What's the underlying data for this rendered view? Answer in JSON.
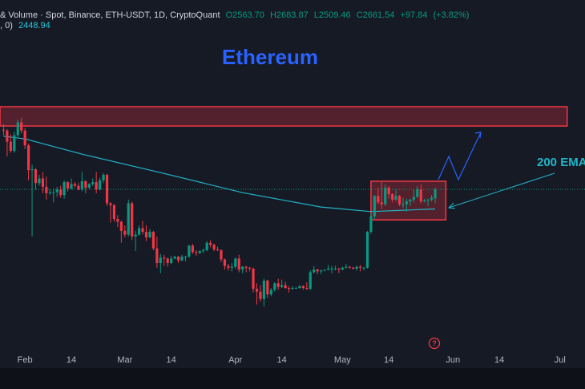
{
  "chart_data": {
    "type": "candlestick",
    "title": "Ethereum",
    "header": "& Volume · Spot, Binance, ETH-USDT, 1D, CryptoQuant",
    "legend_labels": [
      "O2563.70",
      "H2683.87",
      "L2509.46",
      "C2661.54"
    ],
    "change": {
      "value": 97.84,
      "label": "+97.84"
    },
    "change_pct": {
      "value": 3.82,
      "label": "(+3.82%)"
    },
    "ema_prefix": ", 0)",
    "annotation": "200 EMA",
    "up_color": "#089981",
    "down_color": "#f23645",
    "ema_color": "#22b5c9",
    "zone_color": "#f23645",
    "xlim": [
      "01-25",
      "07-08"
    ],
    "ylim": [
      910,
      4720
    ],
    "xticks": [
      {
        "value": "02-01",
        "label": "Feb"
      },
      {
        "value": "02-14",
        "label": "14"
      },
      {
        "value": "03-01",
        "label": "Mar"
      },
      {
        "value": "03-14",
        "label": "14"
      },
      {
        "value": "04-01",
        "label": "Apr"
      },
      {
        "value": "04-14",
        "label": "14"
      },
      {
        "value": "05-01",
        "label": "May"
      },
      {
        "value": "05-14",
        "label": "14"
      },
      {
        "value": "06-01",
        "label": "Jun"
      },
      {
        "value": "06-14",
        "label": "14"
      },
      {
        "value": "07-01",
        "label": "Jul"
      }
    ],
    "x": [
      "01-26",
      "01-27",
      "01-28",
      "01-29",
      "01-30",
      "01-31",
      "02-01",
      "02-02",
      "02-03",
      "02-04",
      "02-05",
      "02-06",
      "02-07",
      "02-08",
      "02-09",
      "02-10",
      "02-11",
      "02-12",
      "02-13",
      "02-14",
      "02-15",
      "02-16",
      "02-17",
      "02-18",
      "02-19",
      "02-20",
      "02-21",
      "02-22",
      "02-23",
      "02-24",
      "02-25",
      "02-26",
      "02-27",
      "02-28",
      "03-01",
      "03-02",
      "03-03",
      "03-04",
      "03-05",
      "03-06",
      "03-07",
      "03-08",
      "03-09",
      "03-10",
      "03-11",
      "03-12",
      "03-13",
      "03-14",
      "03-15",
      "03-16",
      "03-17",
      "03-18",
      "03-19",
      "03-20",
      "03-21",
      "03-22",
      "03-23",
      "03-24",
      "03-25",
      "03-26",
      "03-27",
      "03-28",
      "03-29",
      "03-30",
      "03-31",
      "04-01",
      "04-02",
      "04-03",
      "04-04",
      "04-05",
      "04-06",
      "04-07",
      "04-08",
      "04-09",
      "04-10",
      "04-11",
      "04-12",
      "04-13",
      "04-14",
      "04-15",
      "04-16",
      "04-17",
      "04-18",
      "04-19",
      "04-20",
      "04-21",
      "04-22",
      "04-23",
      "04-24",
      "04-25",
      "04-26",
      "04-27",
      "04-28",
      "04-29",
      "04-30",
      "05-01",
      "05-02",
      "05-03",
      "05-04",
      "05-05",
      "05-06",
      "05-07",
      "05-08",
      "05-09",
      "05-10",
      "05-11",
      "05-12",
      "05-13",
      "05-14",
      "05-15",
      "05-16",
      "05-17",
      "05-18",
      "05-19",
      "05-20",
      "05-21",
      "05-22",
      "05-23",
      "05-24",
      "05-25",
      "05-26",
      "05-27"
    ],
    "candles": [
      [
        3310,
        3370,
        3250,
        3300
      ],
      [
        3300,
        3320,
        3020,
        3180
      ],
      [
        3180,
        3260,
        3060,
        3080
      ],
      [
        3080,
        3290,
        3060,
        3250
      ],
      [
        3250,
        3420,
        3220,
        3390
      ],
      [
        3390,
        3440,
        3270,
        3300
      ],
      [
        3300,
        3330,
        3100,
        3140
      ],
      [
        3140,
        3160,
        2760,
        2870
      ],
      [
        2870,
        2930,
        2150,
        2880
      ],
      [
        2880,
        2890,
        2660,
        2730
      ],
      [
        2730,
        2820,
        2700,
        2780
      ],
      [
        2780,
        2850,
        2620,
        2690
      ],
      [
        2690,
        2800,
        2550,
        2620
      ],
      [
        2620,
        2660,
        2600,
        2630
      ],
      [
        2630,
        2670,
        2520,
        2630
      ],
      [
        2630,
        2690,
        2580,
        2660
      ],
      [
        2660,
        2700,
        2570,
        2600
      ],
      [
        2600,
        2760,
        2560,
        2740
      ],
      [
        2740,
        2750,
        2640,
        2670
      ],
      [
        2670,
        2780,
        2660,
        2720
      ],
      [
        2720,
        2740,
        2680,
        2700
      ],
      [
        2700,
        2730,
        2650,
        2660
      ],
      [
        2660,
        2850,
        2640,
        2750
      ],
      [
        2750,
        2760,
        2620,
        2680
      ],
      [
        2680,
        2730,
        2660,
        2720
      ],
      [
        2720,
        2780,
        2700,
        2740
      ],
      [
        2740,
        2850,
        2620,
        2660
      ],
      [
        2660,
        2790,
        2650,
        2760
      ],
      [
        2760,
        2840,
        2730,
        2820
      ],
      [
        2820,
        2830,
        2480,
        2510
      ],
      [
        2510,
        2520,
        2300,
        2490
      ],
      [
        2490,
        2500,
        2310,
        2340
      ],
      [
        2340,
        2380,
        2250,
        2310
      ],
      [
        2310,
        2320,
        2080,
        2210
      ],
      [
        2210,
        2270,
        2140,
        2170
      ],
      [
        2170,
        2550,
        2150,
        2510
      ],
      [
        2510,
        2530,
        2110,
        2150
      ],
      [
        2150,
        2210,
        1990,
        2170
      ],
      [
        2170,
        2270,
        2160,
        2240
      ],
      [
        2240,
        2320,
        2170,
        2200
      ],
      [
        2200,
        2270,
        2100,
        2140
      ],
      [
        2140,
        2230,
        2130,
        2200
      ],
      [
        2200,
        2210,
        2000,
        2020
      ],
      [
        2020,
        2150,
        1810,
        1860
      ],
      [
        1860,
        1960,
        1750,
        1920
      ],
      [
        1920,
        1950,
        1830,
        1910
      ],
      [
        1910,
        1920,
        1820,
        1860
      ],
      [
        1860,
        1940,
        1850,
        1910
      ],
      [
        1910,
        1940,
        1900,
        1930
      ],
      [
        1930,
        1940,
        1860,
        1890
      ],
      [
        1890,
        1950,
        1880,
        1930
      ],
      [
        1930,
        1940,
        1880,
        1930
      ],
      [
        1930,
        2060,
        1920,
        2050
      ],
      [
        2050,
        2070,
        1960,
        1980
      ],
      [
        1980,
        2000,
        1940,
        1970
      ],
      [
        1970,
        2000,
        1960,
        1990
      ],
      [
        1990,
        2020,
        1970,
        2000
      ],
      [
        2000,
        2100,
        1990,
        2080
      ],
      [
        2080,
        2110,
        2030,
        2060
      ],
      [
        2060,
        2070,
        1990,
        2010
      ],
      [
        2010,
        2040,
        1990,
        2000
      ],
      [
        2000,
        2010,
        1870,
        1900
      ],
      [
        1900,
        1910,
        1790,
        1830
      ],
      [
        1830,
        1850,
        1780,
        1810
      ],
      [
        1810,
        1860,
        1770,
        1820
      ],
      [
        1820,
        1920,
        1800,
        1910
      ],
      [
        1910,
        1950,
        1760,
        1790
      ],
      [
        1790,
        1830,
        1750,
        1820
      ],
      [
        1820,
        1830,
        1760,
        1810
      ],
      [
        1810,
        1820,
        1770,
        1800
      ],
      [
        1800,
        1810,
        1540,
        1580
      ],
      [
        1580,
        1640,
        1410,
        1550
      ],
      [
        1550,
        1620,
        1440,
        1470
      ],
      [
        1470,
        1690,
        1390,
        1670
      ],
      [
        1670,
        1680,
        1480,
        1520
      ],
      [
        1520,
        1590,
        1500,
        1570
      ],
      [
        1570,
        1650,
        1550,
        1640
      ],
      [
        1640,
        1690,
        1570,
        1600
      ],
      [
        1600,
        1680,
        1590,
        1620
      ],
      [
        1620,
        1660,
        1580,
        1590
      ],
      [
        1590,
        1610,
        1540,
        1580
      ],
      [
        1580,
        1610,
        1570,
        1590
      ],
      [
        1590,
        1600,
        1580,
        1590
      ],
      [
        1590,
        1620,
        1580,
        1610
      ],
      [
        1610,
        1620,
        1570,
        1590
      ],
      [
        1590,
        1650,
        1570,
        1580
      ],
      [
        1580,
        1780,
        1570,
        1760
      ],
      [
        1760,
        1830,
        1750,
        1790
      ],
      [
        1790,
        1800,
        1740,
        1770
      ],
      [
        1770,
        1790,
        1740,
        1780
      ],
      [
        1780,
        1790,
        1770,
        1790
      ],
      [
        1790,
        1840,
        1780,
        1800
      ],
      [
        1800,
        1830,
        1750,
        1800
      ],
      [
        1800,
        1830,
        1780,
        1800
      ],
      [
        1800,
        1810,
        1750,
        1790
      ],
      [
        1790,
        1820,
        1780,
        1810
      ],
      [
        1810,
        1850,
        1800,
        1820
      ],
      [
        1820,
        1830,
        1800,
        1810
      ],
      [
        1810,
        1820,
        1790,
        1800
      ],
      [
        1800,
        1830,
        1780,
        1820
      ],
      [
        1820,
        1840,
        1770,
        1810
      ],
      [
        1810,
        1820,
        1780,
        1810
      ],
      [
        1810,
        2210,
        1800,
        2200
      ],
      [
        2200,
        2400,
        2180,
        2370
      ],
      [
        2370,
        2600,
        2340,
        2590
      ],
      [
        2590,
        2680,
        2500,
        2520
      ],
      [
        2520,
        2740,
        2450,
        2500
      ],
      [
        2500,
        2720,
        2480,
        2680
      ],
      [
        2680,
        2700,
        2560,
        2610
      ],
      [
        2610,
        2620,
        2520,
        2550
      ],
      [
        2550,
        2660,
        2530,
        2590
      ],
      [
        2590,
        2600,
        2480,
        2500
      ],
      [
        2500,
        2570,
        2460,
        2500
      ],
      [
        2500,
        2560,
        2420,
        2530
      ],
      [
        2530,
        2560,
        2480,
        2550
      ],
      [
        2550,
        2660,
        2520,
        2580
      ],
      [
        2580,
        2700,
        2570,
        2660
      ],
      [
        2660,
        2720,
        2510,
        2530
      ],
      [
        2530,
        2560,
        2520,
        2540
      ],
      [
        2540,
        2560,
        2480,
        2550
      ],
      [
        2550,
        2600,
        2530,
        2570
      ],
      [
        2563.7,
        2683.87,
        2509.46,
        2661.54
      ]
    ],
    "ema": {
      "x": [
        "01-26",
        "02-01",
        "02-17",
        "03-11",
        "04-03",
        "04-25",
        "05-09",
        "05-27"
      ],
      "values": [
        3240,
        3210,
        3044,
        2844,
        2626,
        2470,
        2420,
        2448.94
      ]
    },
    "zones": [
      {
        "from": "01-25",
        "to": "07-03",
        "ylim": [
          3350,
          3560
        ]
      },
      {
        "from": "05-09",
        "to": "05-30",
        "ylim": [
          2330,
          2750
        ]
      }
    ]
  }
}
